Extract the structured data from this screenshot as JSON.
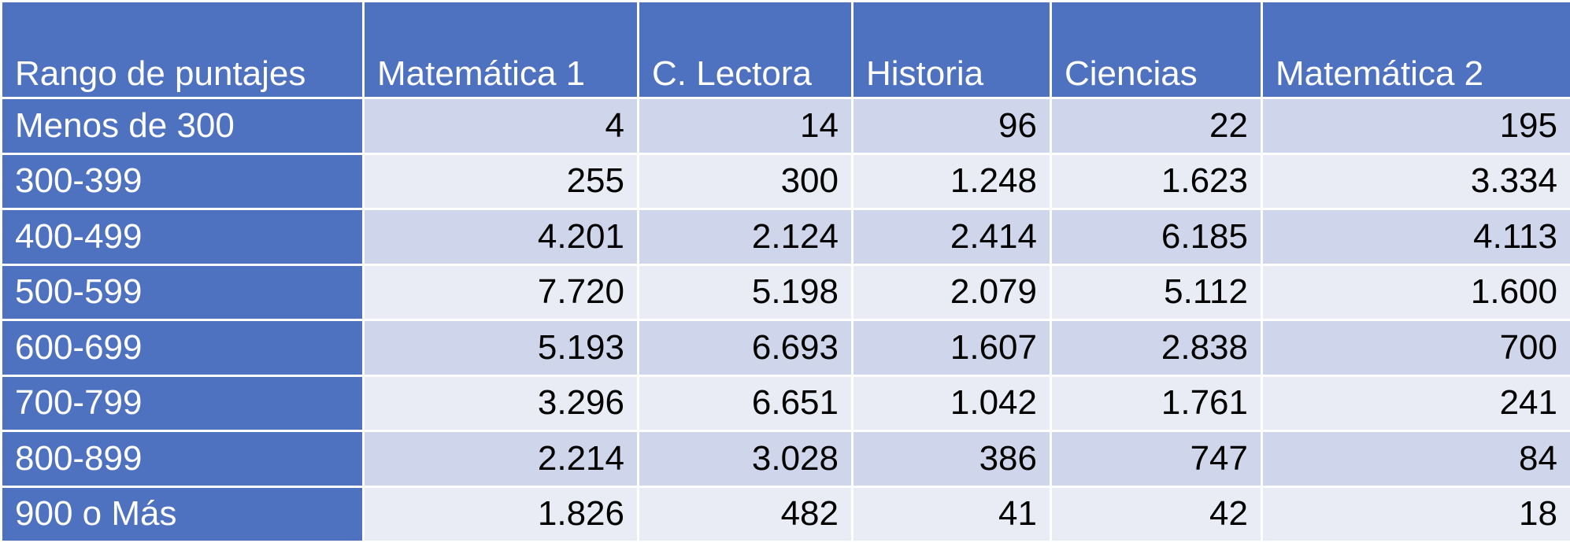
{
  "table": {
    "header": [
      "Rango de puntajes",
      "Matemática 1",
      "C. Lectora",
      "Historia",
      "Ciencias",
      "Matemática 2"
    ],
    "rows": [
      [
        "Menos de 300",
        "4",
        "14",
        "96",
        "22",
        "195"
      ],
      [
        "300-399",
        "255",
        "300",
        "1.248",
        "1.623",
        "3.334"
      ],
      [
        "400-499",
        "4.201",
        "2.124",
        "2.414",
        "6.185",
        "4.113"
      ],
      [
        "500-599",
        "7.720",
        "5.198",
        "2.079",
        "5.112",
        "1.600"
      ],
      [
        "600-699",
        "5.193",
        "6.693",
        "1.607",
        "2.838",
        "700"
      ],
      [
        "700-799",
        "3.296",
        "6.651",
        "1.042",
        "1.761",
        "241"
      ],
      [
        "800-899",
        "2.214",
        "3.028",
        "386",
        "747",
        "84"
      ],
      [
        "900 o Más",
        "1.826",
        "482",
        "41",
        "42",
        "18"
      ]
    ]
  }
}
